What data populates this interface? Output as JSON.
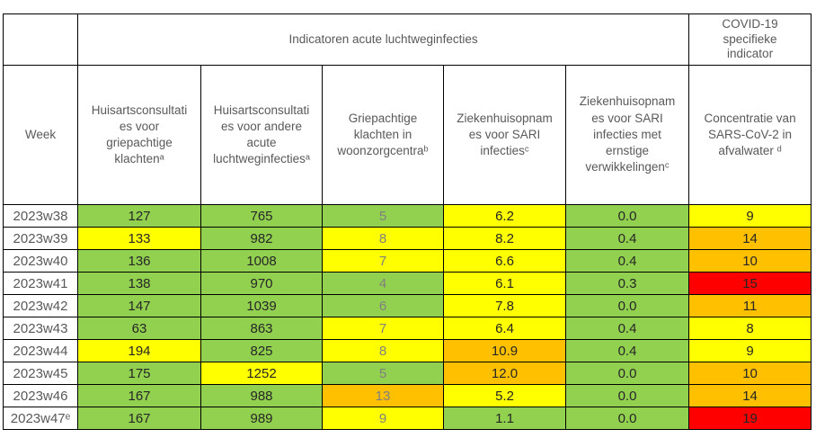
{
  "theme": {
    "green": "#92d050",
    "yellow": "#ffff00",
    "orange": "#ffc000",
    "red": "#ff0000",
    "border": "#000000",
    "header_text": "#595959",
    "week_text": "#595959",
    "value_text": "#262626",
    "muted_text": "#808080",
    "background": "#ffffff"
  },
  "table": {
    "week_header": "Week",
    "covid_header": "COVID-19\nspecifieke\nindicator",
    "column_headers": [
      "Huisartsconsultati\nes voor\ngriepachtige\nklachtenᵃ",
      "Huisartsconsultati\nes voor andere\nacute\nluchtweginfectiesᵃ",
      "Griepachtige\nklachten in\nwoonzorgcentraᵇ",
      "Ziekenhuisopnam\nes voor SARI\ninfectiesᶜ",
      "Ziekenhuisopnam\nes voor SARI\ninfecties met\nernstige\nverwikkelingenᶜ",
      "Concentratie van\nSARS-CoV-2 in\nafvalwater ᵈ"
    ],
    "gray_text_columns": [
      2
    ]
  },
  "chart_data": {
    "type": "table",
    "title": "Indicatoren acute luchtweginfecties",
    "covid_group_title": "COVID-19 specifieke indicator",
    "row_header": "Week",
    "categories": [
      "2023w38",
      "2023w39",
      "2023w40",
      "2023w41",
      "2023w42",
      "2023w43",
      "2023w44",
      "2023w45",
      "2023w46",
      "2023w47ᵉ"
    ],
    "series": [
      {
        "name": "Huisartsconsultaties voor griepachtige klachten",
        "footnote": "a",
        "decimals": 0,
        "values": [
          127,
          133,
          136,
          138,
          147,
          63,
          194,
          175,
          167,
          167
        ],
        "cell_colors": [
          "green",
          "yellow",
          "green",
          "green",
          "green",
          "green",
          "yellow",
          "green",
          "green",
          "green"
        ]
      },
      {
        "name": "Huisartsconsultaties voor andere acute luchtweginfecties",
        "footnote": "a",
        "decimals": 0,
        "values": [
          765,
          982,
          1008,
          970,
          1039,
          863,
          825,
          1252,
          988,
          989
        ],
        "cell_colors": [
          "green",
          "green",
          "green",
          "green",
          "green",
          "green",
          "green",
          "yellow",
          "green",
          "green"
        ]
      },
      {
        "name": "Griepachtige klachten in woonzorgcentra",
        "footnote": "b",
        "decimals": 0,
        "values": [
          5,
          8,
          7,
          4,
          6,
          7,
          8,
          5,
          13,
          9
        ],
        "cell_colors": [
          "green",
          "yellow",
          "yellow",
          "green",
          "green",
          "yellow",
          "yellow",
          "green",
          "orange",
          "yellow"
        ]
      },
      {
        "name": "Ziekenhuisopnames voor SARI infecties",
        "footnote": "c",
        "decimals": 1,
        "values": [
          6.2,
          8.2,
          6.6,
          6.1,
          7.8,
          6.4,
          10.9,
          12.0,
          5.2,
          1.1
        ],
        "cell_colors": [
          "yellow",
          "yellow",
          "yellow",
          "yellow",
          "yellow",
          "yellow",
          "orange",
          "orange",
          "yellow",
          "green"
        ]
      },
      {
        "name": "Ziekenhuisopnames voor SARI infecties met ernstige verwikkelingen",
        "footnote": "c",
        "decimals": 1,
        "values": [
          0.0,
          0.4,
          0.4,
          0.3,
          0.0,
          0.4,
          0.4,
          0.0,
          0.0,
          0.0
        ],
        "cell_colors": [
          "green",
          "green",
          "green",
          "green",
          "green",
          "green",
          "green",
          "green",
          "green",
          "green"
        ]
      },
      {
        "name": "Concentratie van SARS-CoV-2 in afvalwater",
        "footnote": "d",
        "decimals": 0,
        "values": [
          9,
          14,
          10,
          15,
          11,
          8,
          9,
          10,
          14,
          19
        ],
        "cell_colors": [
          "yellow",
          "orange",
          "orange",
          "red",
          "orange",
          "yellow",
          "yellow",
          "orange",
          "orange",
          "red"
        ]
      }
    ],
    "color_legend": {
      "green": "#92d050",
      "yellow": "#ffff00",
      "orange": "#ffc000",
      "red": "#ff0000"
    }
  }
}
